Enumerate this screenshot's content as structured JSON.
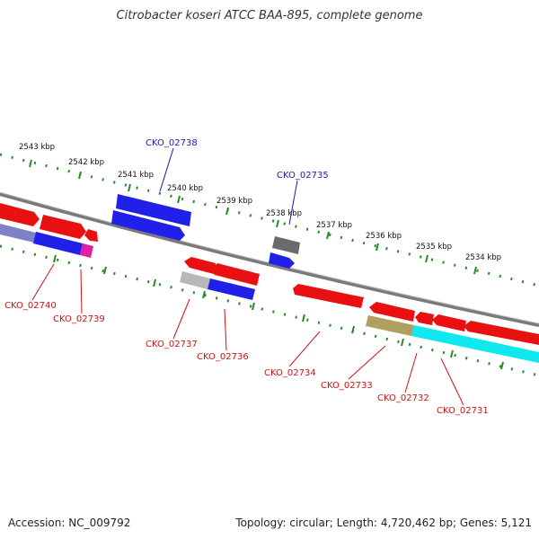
{
  "title": "Citrobacter koseri ATCC BAA-895, complete genome",
  "footer": {
    "accession": "Accession: NC_009792",
    "topology": "Topology: circular; Length: 4,720,462 bp; Genes: 5,121"
  },
  "colors": {
    "forward_gene": "#2020e8",
    "reverse_gene": "#e81010",
    "pseudo_gene": "#a0a0a0",
    "backbone": "#808080",
    "tick": "#2a8a2a",
    "forward_label": "#1a1ab0",
    "reverse_label": "#d01010"
  },
  "scale_labels": [
    "2543 kbp",
    "2542 kbp",
    "2541 kbp",
    "2540 kbp",
    "2539 kbp",
    "2538 kbp",
    "2537 kbp",
    "2536 kbp",
    "2535 kbp",
    "2534 kbp"
  ],
  "gene_labels": {
    "forward": [
      "CKO_02738",
      "CKO_02735"
    ],
    "reverse": [
      "CKO_02740",
      "CKO_02739",
      "CKO_02737",
      "CKO_02736",
      "CKO_02734",
      "CKO_02733",
      "CKO_02732",
      "CKO_02731"
    ]
  }
}
